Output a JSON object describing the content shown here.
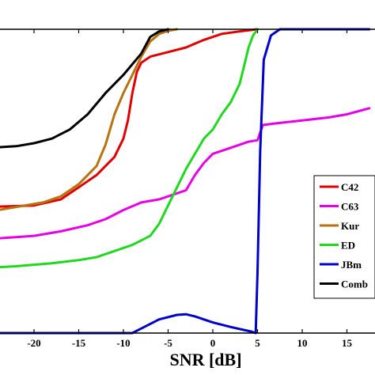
{
  "chart_data": {
    "type": "line",
    "title": "",
    "xlabel": "SNR [dB]",
    "ylabel": "",
    "xlim": [
      -25,
      17.5
    ],
    "ylim": [
      0,
      1
    ],
    "grid": false,
    "x_ticks": [
      -20,
      -15,
      -10,
      -5,
      0,
      5,
      10,
      15
    ],
    "x_tick_labels": [
      "-20",
      "-15",
      "-10",
      "-5",
      "0",
      "5",
      "10",
      "15"
    ],
    "legend_position": "right",
    "series": [
      {
        "name": "C42",
        "color": "#e00000",
        "points": [
          [
            -25,
            0.415
          ],
          [
            -20,
            0.42
          ],
          [
            -17,
            0.44
          ],
          [
            -15,
            0.48
          ],
          [
            -13,
            0.52
          ],
          [
            -11,
            0.58
          ],
          [
            -10,
            0.64
          ],
          [
            -9.5,
            0.7
          ],
          [
            -9,
            0.79
          ],
          [
            -8.5,
            0.86
          ],
          [
            -8,
            0.89
          ],
          [
            -7,
            0.91
          ],
          [
            -5,
            0.925
          ],
          [
            -3,
            0.94
          ],
          [
            -1,
            0.965
          ],
          [
            1,
            0.985
          ],
          [
            3,
            0.993
          ],
          [
            5,
            1.0
          ]
        ]
      },
      {
        "name": "C63",
        "color": "#e600e6",
        "points": [
          [
            -25,
            0.31
          ],
          [
            -20,
            0.32
          ],
          [
            -17,
            0.335
          ],
          [
            -14,
            0.355
          ],
          [
            -12,
            0.375
          ],
          [
            -10,
            0.405
          ],
          [
            -8,
            0.43
          ],
          [
            -6,
            0.44
          ],
          [
            -5,
            0.45
          ],
          [
            -3,
            0.47
          ],
          [
            -2,
            0.52
          ],
          [
            -1,
            0.56
          ],
          [
            0,
            0.59
          ],
          [
            2,
            0.61
          ],
          [
            4,
            0.63
          ],
          [
            5,
            0.635
          ],
          [
            5.3,
            0.66
          ],
          [
            5.6,
            0.685
          ],
          [
            7,
            0.69
          ],
          [
            10,
            0.7
          ],
          [
            13,
            0.71
          ],
          [
            15,
            0.72
          ],
          [
            17.5,
            0.74
          ]
        ]
      },
      {
        "name": "Kur",
        "color": "#b8720f",
        "points": [
          [
            -25,
            0.4
          ],
          [
            -22,
            0.415
          ],
          [
            -19,
            0.43
          ],
          [
            -17,
            0.45
          ],
          [
            -15,
            0.49
          ],
          [
            -13,
            0.55
          ],
          [
            -12,
            0.62
          ],
          [
            -11,
            0.72
          ],
          [
            -10,
            0.79
          ],
          [
            -9,
            0.85
          ],
          [
            -8,
            0.91
          ],
          [
            -7,
            0.96
          ],
          [
            -6,
            0.985
          ],
          [
            -5,
            0.995
          ],
          [
            -4,
            1.0
          ]
        ]
      },
      {
        "name": "ED",
        "color": "#1fd81f",
        "points": [
          [
            -25,
            0.215
          ],
          [
            -22,
            0.22
          ],
          [
            -18,
            0.23
          ],
          [
            -15,
            0.24
          ],
          [
            -13,
            0.25
          ],
          [
            -11,
            0.27
          ],
          [
            -9,
            0.29
          ],
          [
            -7,
            0.32
          ],
          [
            -6,
            0.36
          ],
          [
            -5,
            0.42
          ],
          [
            -4,
            0.48
          ],
          [
            -3,
            0.54
          ],
          [
            -2,
            0.59
          ],
          [
            -1,
            0.64
          ],
          [
            0,
            0.67
          ],
          [
            1,
            0.72
          ],
          [
            2,
            0.76
          ],
          [
            3,
            0.82
          ],
          [
            3.5,
            0.88
          ],
          [
            4,
            0.94
          ],
          [
            4.5,
            0.98
          ],
          [
            5,
            1.0
          ]
        ]
      },
      {
        "name": "JBm",
        "color": "#0000cc",
        "points": [
          [
            -25,
            0.0
          ],
          [
            -9,
            0.0
          ],
          [
            -8,
            0.015
          ],
          [
            -6,
            0.045
          ],
          [
            -4,
            0.06
          ],
          [
            -3,
            0.062
          ],
          [
            -2,
            0.055
          ],
          [
            0,
            0.035
          ],
          [
            2,
            0.02
          ],
          [
            4.3,
            0.005
          ],
          [
            4.8,
            0.0
          ],
          [
            5,
            0.2
          ],
          [
            5.3,
            0.6
          ],
          [
            5.7,
            0.9
          ],
          [
            6.5,
            0.98
          ],
          [
            7.5,
            1.0
          ],
          [
            17.5,
            1.0
          ]
        ]
      },
      {
        "name": "Comb",
        "color": "#000000",
        "points": [
          [
            -25,
            0.61
          ],
          [
            -22,
            0.615
          ],
          [
            -20,
            0.625
          ],
          [
            -18,
            0.64
          ],
          [
            -16,
            0.67
          ],
          [
            -14,
            0.72
          ],
          [
            -12,
            0.79
          ],
          [
            -10,
            0.85
          ],
          [
            -8,
            0.92
          ],
          [
            -7,
            0.975
          ],
          [
            -6,
            0.993
          ],
          [
            -5,
            1.0
          ]
        ]
      }
    ]
  },
  "legend": {
    "items": [
      {
        "label": "C42",
        "color": "#e00000"
      },
      {
        "label": "C63",
        "color": "#e600e6"
      },
      {
        "label": "Kur",
        "color": "#b8720f"
      },
      {
        "label": "ED",
        "color": "#1fd81f"
      },
      {
        "label": "JBm",
        "color": "#0000cc"
      },
      {
        "label": "Comb",
        "color": "#000000"
      }
    ]
  }
}
